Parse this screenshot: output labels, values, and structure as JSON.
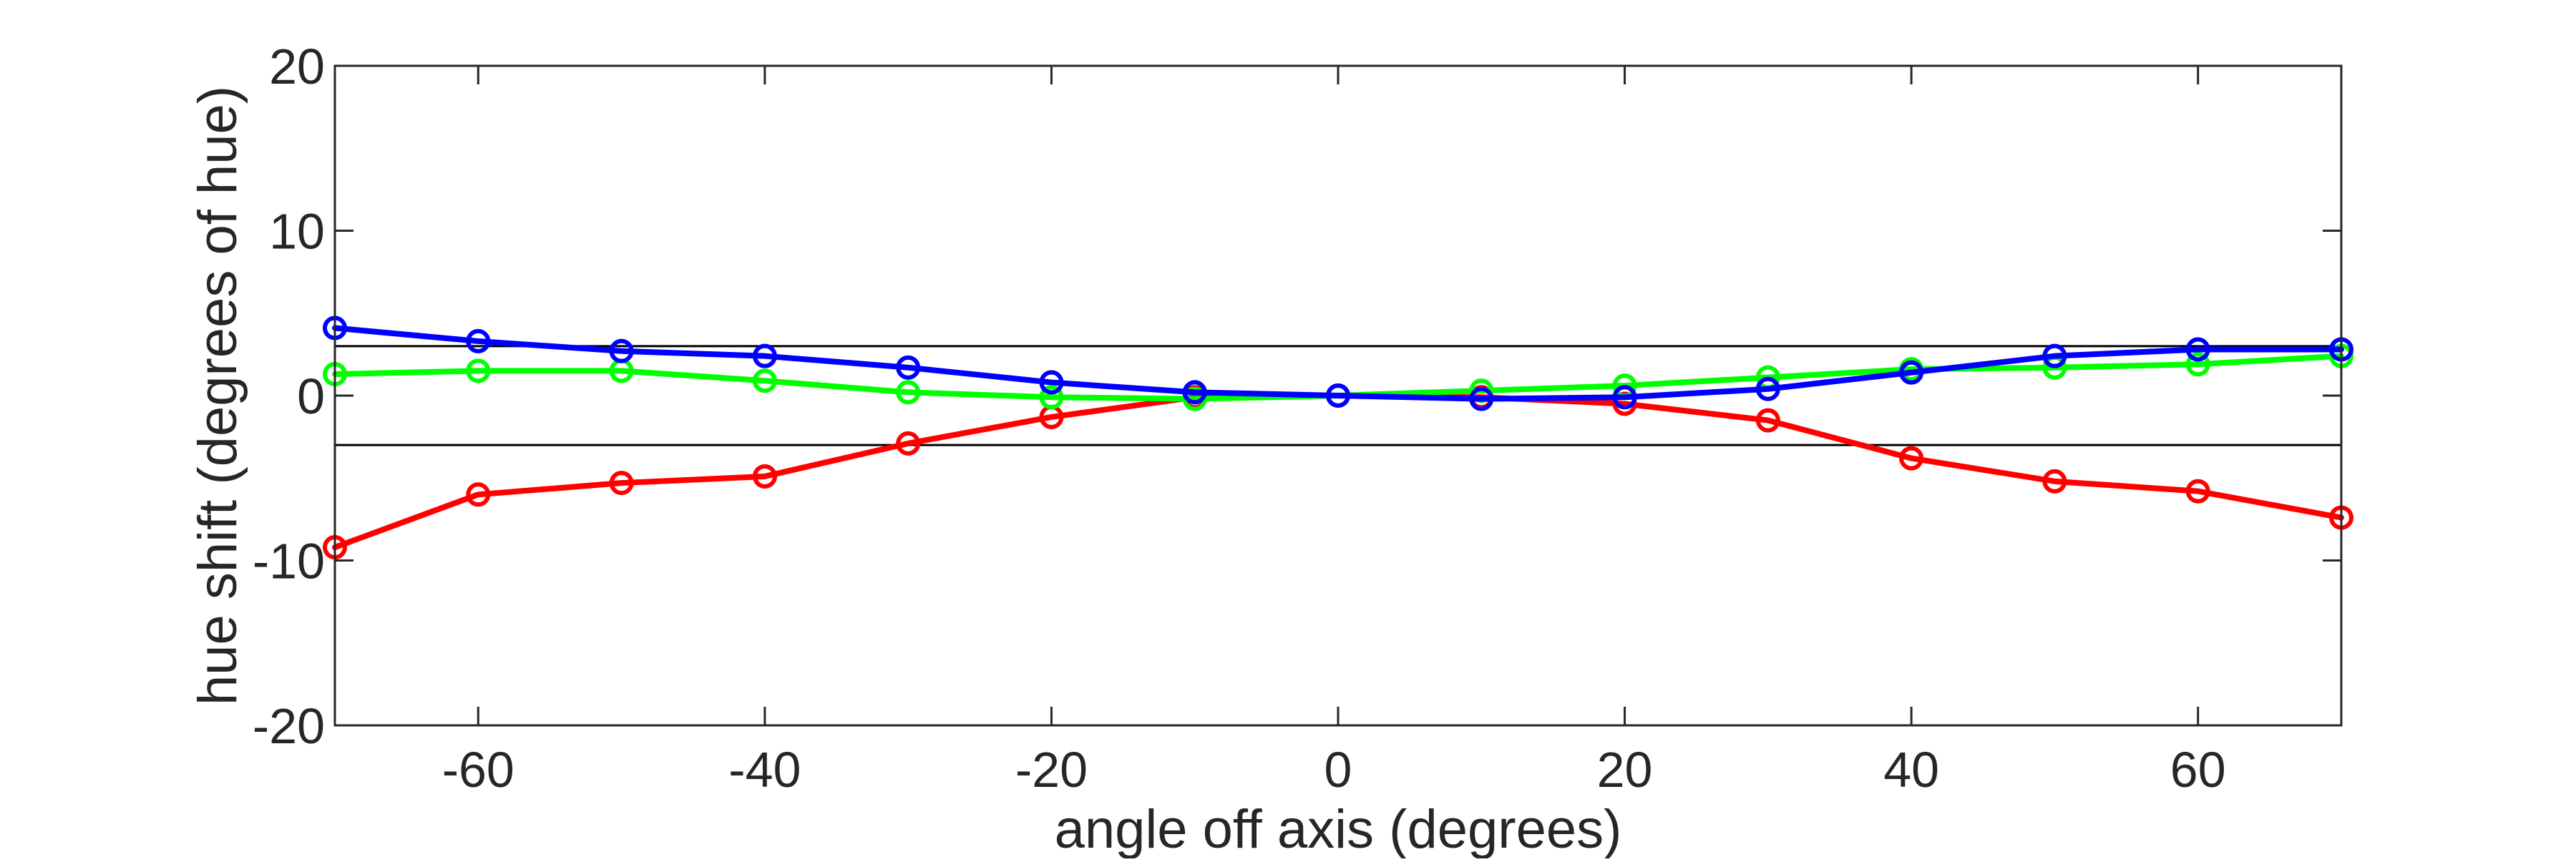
{
  "chart_data": {
    "type": "line",
    "title": "",
    "xlabel": "angle off axis (degrees)",
    "ylabel": "hue shift (degrees of hue)",
    "xlim": [
      -70,
      70
    ],
    "ylim": [
      -20,
      20
    ],
    "xticks": [
      -60,
      -40,
      -20,
      0,
      20,
      40,
      60
    ],
    "yticks": [
      -20,
      -10,
      0,
      10,
      20
    ],
    "x": [
      -70,
      -60,
      -50,
      -40,
      -30,
      -20,
      -10,
      0,
      10,
      20,
      30,
      40,
      50,
      60,
      70
    ],
    "reference_lines": [
      3,
      -3
    ],
    "grid": false,
    "legend": "none",
    "series": [
      {
        "color": "#ff0000",
        "values": [
          -9.2,
          -6.0,
          -5.3,
          -4.9,
          -2.9,
          -1.3,
          -0.1,
          0,
          -0.1,
          -0.5,
          -1.5,
          -3.8,
          -5.2,
          -5.8,
          -7.4
        ]
      },
      {
        "color": "#00ff00",
        "values": [
          1.3,
          1.5,
          1.5,
          0.9,
          0.2,
          -0.1,
          -0.2,
          0,
          0.3,
          0.6,
          1.1,
          1.6,
          1.7,
          1.9,
          2.4
        ]
      },
      {
        "color": "#0000ff",
        "values": [
          4.1,
          3.3,
          2.7,
          2.4,
          1.7,
          0.8,
          0.2,
          0,
          -0.2,
          -0.1,
          0.4,
          1.4,
          2.4,
          2.8,
          2.8
        ]
      }
    ]
  }
}
